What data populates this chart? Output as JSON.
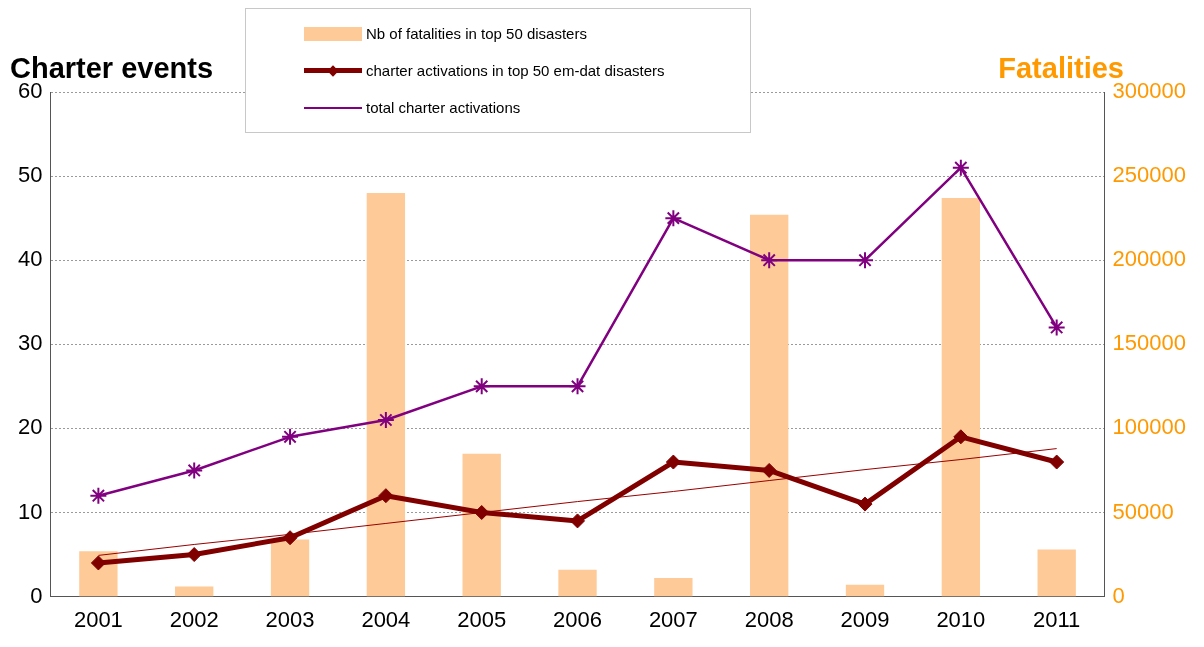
{
  "chart_data": {
    "type": "bar",
    "ylabel": "Charter events",
    "y2label": "Fatalities",
    "categories": [
      "2001",
      "2002",
      "2003",
      "2004",
      "2005",
      "2006",
      "2007",
      "2008",
      "2009",
      "2010",
      "2011"
    ],
    "series": [
      {
        "name": "Nb of fatalities in top 50 disasters",
        "axis": "y2",
        "color": "#fdca98",
        "values": [
          27000,
          6000,
          34000,
          240000,
          85000,
          16000,
          11000,
          227000,
          7000,
          237000,
          28000
        ]
      },
      {
        "name": "charter activations in top 50 em-dat disasters",
        "type": "line",
        "color": "#800000",
        "marker": "diamond",
        "values": [
          4,
          5,
          7,
          12,
          10,
          9,
          16,
          15,
          11,
          19,
          16
        ]
      },
      {
        "name": "total charter activations",
        "type": "line",
        "color": "#800080",
        "marker": "cross",
        "values": [
          12,
          15,
          19,
          21,
          25,
          25,
          45,
          40,
          40,
          51,
          32
        ]
      },
      {
        "type": "line",
        "color": "#990000",
        "marker": "none",
        "values": [
          4.9,
          6.2,
          7.4,
          8.7,
          10.0,
          11.3,
          12.5,
          13.8,
          15.1,
          16.3,
          17.6
        ]
      }
    ],
    "ylim": [
      0,
      60
    ],
    "yticks": [
      0,
      10,
      20,
      30,
      40,
      50,
      60
    ],
    "y2lim": [
      0,
      300000
    ],
    "y2ticks": [
      0,
      50000,
      100000,
      150000,
      200000,
      250000,
      300000
    ],
    "grid": "y",
    "legend": "top"
  }
}
